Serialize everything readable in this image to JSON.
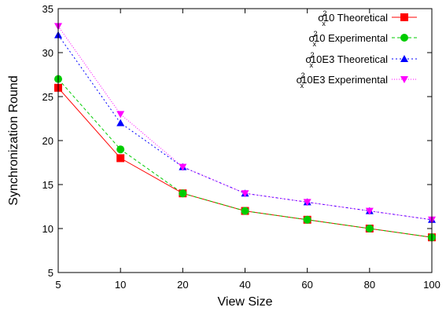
{
  "chart_data": {
    "type": "line",
    "title": "",
    "xlabel": "View Size",
    "ylabel": "Synchronization Round",
    "categories": [
      "5",
      "10",
      "20",
      "40",
      "60",
      "80",
      "100"
    ],
    "ylim": [
      5,
      35
    ],
    "yticks": [
      "5",
      "10",
      "15",
      "20",
      "25",
      "30",
      "35"
    ],
    "grid": false,
    "legend_position": "top-right",
    "series": [
      {
        "legend_prefix": "σ",
        "legend_sup": "2",
        "legend_sub": "x",
        "name": "10 Theoretical",
        "color": "#ff0000",
        "dash": "solid",
        "marker": "square",
        "values": [
          26,
          18,
          14,
          12,
          11,
          10,
          9
        ]
      },
      {
        "legend_prefix": "σ",
        "legend_sup": "2",
        "legend_sub": "x",
        "name": "10 Experimental",
        "color": "#00cc00",
        "dash": "dashed",
        "marker": "circle",
        "values": [
          27,
          19,
          14,
          12,
          11,
          10,
          9
        ]
      },
      {
        "legend_prefix": "σ",
        "legend_sup": "2",
        "legend_sub": "x",
        "name": "10E3 Theoretical",
        "color": "#0000ff",
        "dash": "dotted",
        "marker": "triangle-up",
        "values": [
          32,
          22,
          17,
          14,
          13,
          12,
          11
        ]
      },
      {
        "legend_prefix": "σ",
        "legend_sup": "2",
        "legend_sub": "x",
        "name": "10E3 Experimental",
        "color": "#ff00ff",
        "dash": "dotted-fine",
        "marker": "triangle-down",
        "values": [
          33,
          23,
          17,
          14,
          13,
          12,
          11
        ]
      }
    ]
  }
}
